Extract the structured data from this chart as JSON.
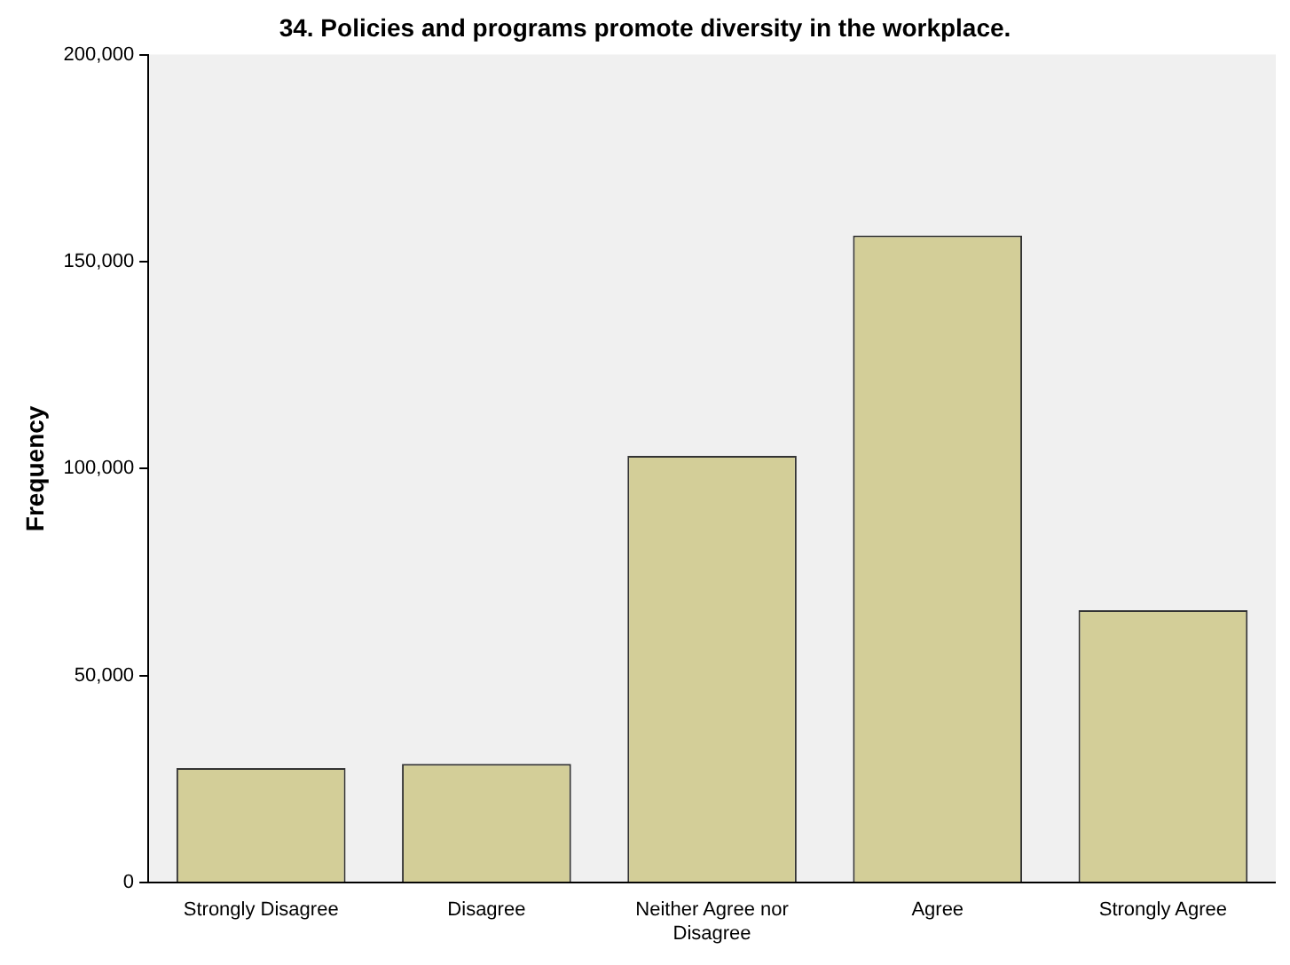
{
  "chart_data": {
    "type": "bar",
    "title": "34. Policies and programs promote diversity in the workplace.",
    "ylabel": "Frequency",
    "categories": [
      "Strongly Disagree",
      "Disagree",
      "Neither Agree nor Disagree",
      "Agree",
      "Strongly Agree"
    ],
    "values": [
      27700,
      28700,
      103100,
      156300,
      65800
    ],
    "color": "#d3ce98",
    "ylim": [
      0,
      200000
    ],
    "yticks": [
      {
        "value": 0,
        "label": "0"
      },
      {
        "value": 50000,
        "label": "50,000"
      },
      {
        "value": 100000,
        "label": "100,000"
      },
      {
        "value": 150000,
        "label": "150,000"
      },
      {
        "value": 200000,
        "label": "200,000"
      }
    ],
    "grid": false,
    "legend": false
  }
}
